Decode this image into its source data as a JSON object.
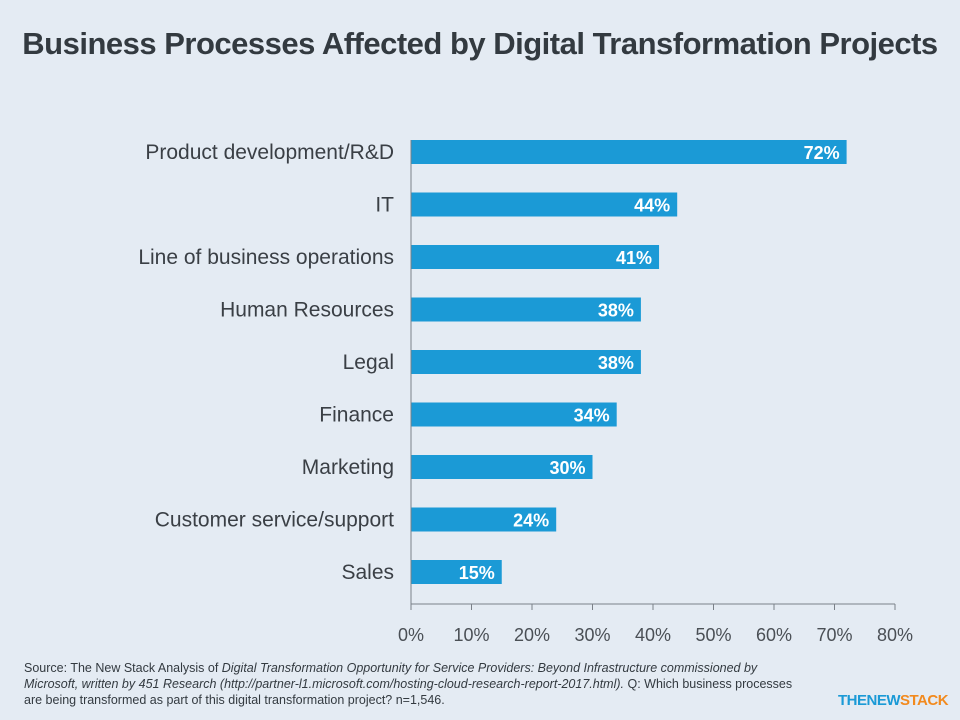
{
  "chart_data": {
    "type": "bar",
    "orientation": "horizontal",
    "title": "Business Processes Affected by Digital Transformation Projects",
    "categories": [
      "Product development/R&D",
      "IT",
      "Line of business operations",
      "Human Resources",
      "Legal",
      "Finance",
      "Marketing",
      "Customer service/support",
      "Sales"
    ],
    "values": [
      72,
      44,
      41,
      38,
      38,
      34,
      30,
      24,
      15
    ],
    "value_labels": [
      "72%",
      "44%",
      "41%",
      "38%",
      "38%",
      "34%",
      "30%",
      "24%",
      "15%"
    ],
    "xlim": [
      0,
      80
    ],
    "x_ticks": [
      "0%",
      "10%",
      "20%",
      "30%",
      "40%",
      "50%",
      "60%",
      "70%",
      "80%"
    ],
    "xlabel": "",
    "ylabel": "",
    "grid": false,
    "bar_color": "#1b9ad6"
  },
  "footer": {
    "source_prefix": "Source: The New Stack Analysis of ",
    "source_italic": "Digital Transformation Opportunity for Service Providers: Beyond Infrastructure commissioned by Microsoft, written by 451 Research (http://partner-l1.microsoft.com/hosting-cloud-research-report-2017.html).",
    "source_suffix": " Q: Which business processes are being transformed as part of this digital transformation project? n=1,546."
  },
  "logo": {
    "part1": "THENEW",
    "part2": "STACK",
    "color1": "#1b9ad6",
    "color2": "#f28a1e"
  }
}
